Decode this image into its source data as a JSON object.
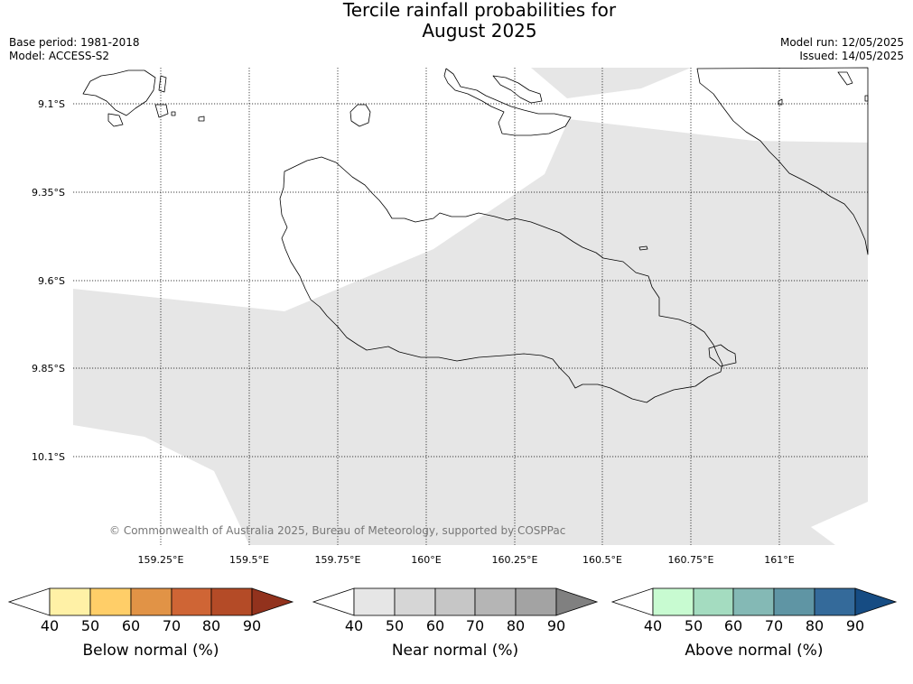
{
  "title_line1": "Tercile rainfall probabilities for",
  "title_line2": "August 2025",
  "base_period": "Base period: 1981-2018",
  "model": "Model: ACCESS-S2",
  "model_run": "Model run: 12/05/2025",
  "issued": "Issued: 14/05/2025",
  "copyright": "© Commonwealth of Australia 2025, Bureau of Meteorology, supported by COSPPac",
  "map": {
    "lon_labels": [
      "159.25°E",
      "159.5°E",
      "159.75°E",
      "160°E",
      "160.25°E",
      "160.5°E",
      "160.75°E",
      "161°E"
    ],
    "lat_labels": [
      "9.1°S",
      "9.35°S",
      "9.6°S",
      "9.85°S",
      "10.1°S"
    ],
    "shaded_category": "Near normal",
    "shaded_probability_bin": "40-50",
    "shaded_color": "#e6e6e6"
  },
  "colorbars": [
    {
      "label": "Below normal (%)",
      "ticks": [
        "40",
        "50",
        "60",
        "70",
        "80",
        "90"
      ],
      "colors": [
        "#ffffff",
        "#fff1a6",
        "#ffce68",
        "#e19346",
        "#cf6535",
        "#b44b27",
        "#92321d"
      ]
    },
    {
      "label": "Near normal (%)",
      "ticks": [
        "40",
        "50",
        "60",
        "70",
        "80",
        "90"
      ],
      "colors": [
        "#ffffff",
        "#e6e6e6",
        "#d6d6d6",
        "#c6c6c6",
        "#b5b5b5",
        "#a3a3a3",
        "#808080"
      ]
    },
    {
      "label": "Above normal (%)",
      "ticks": [
        "40",
        "50",
        "60",
        "70",
        "80",
        "90"
      ],
      "colors": [
        "#ffffff",
        "#c8fbd1",
        "#a4dcc0",
        "#84b9b5",
        "#5f95a4",
        "#346a9a",
        "#164c83"
      ]
    }
  ]
}
